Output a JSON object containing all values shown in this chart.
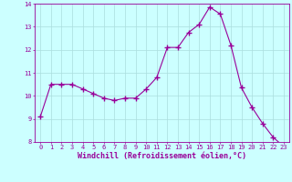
{
  "x": [
    0,
    1,
    2,
    3,
    4,
    5,
    6,
    7,
    8,
    9,
    10,
    11,
    12,
    13,
    14,
    15,
    16,
    17,
    18,
    19,
    20,
    21,
    22,
    23
  ],
  "y": [
    9.1,
    10.5,
    10.5,
    10.5,
    10.3,
    10.1,
    9.9,
    9.8,
    9.9,
    9.9,
    10.3,
    10.8,
    12.1,
    12.1,
    12.75,
    13.1,
    13.85,
    13.55,
    12.2,
    10.35,
    9.5,
    8.8,
    8.2,
    7.8
  ],
  "line_color": "#990099",
  "marker": "+",
  "marker_color": "#990099",
  "bg_color": "#ccffff",
  "grid_color": "#aadddd",
  "xlabel": "Windchill (Refroidissement éolien,°C)",
  "xlabel_color": "#990099",
  "tick_color": "#990099",
  "spine_color": "#990099",
  "ylim": [
    8,
    14
  ],
  "xlim_min": -0.5,
  "xlim_max": 23.5,
  "yticks": [
    8,
    9,
    10,
    11,
    12,
    13,
    14
  ],
  "xticks": [
    0,
    1,
    2,
    3,
    4,
    5,
    6,
    7,
    8,
    9,
    10,
    11,
    12,
    13,
    14,
    15,
    16,
    17,
    18,
    19,
    20,
    21,
    22,
    23
  ],
  "figsize": [
    3.2,
    2.0
  ],
  "dpi": 100,
  "tick_fontsize": 5.0,
  "xlabel_fontsize": 6.0
}
